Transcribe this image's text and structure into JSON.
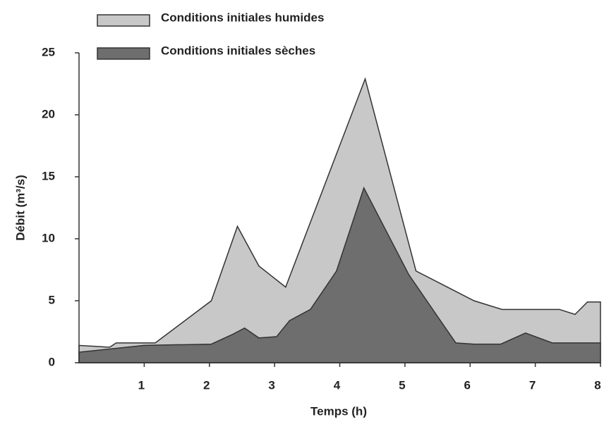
{
  "chart_data": {
    "type": "area",
    "xlabel": "Temps (h)",
    "ylabel": "Débit (m³/s)",
    "xlim": [
      0,
      8
    ],
    "xticks": [
      1,
      2,
      3,
      4,
      5,
      6,
      7,
      8
    ],
    "ylim": [
      0,
      25
    ],
    "yticks": [
      0,
      5,
      10,
      15,
      20,
      25
    ],
    "series": [
      {
        "name": "Conditions initiales humides",
        "color": "#c8c8c8",
        "x": [
          0,
          0.47,
          0.57,
          1.17,
          2.03,
          2.43,
          2.76,
          3.17,
          4.39,
          5.17,
          6.06,
          6.49,
          7.37,
          7.61,
          7.8,
          8
        ],
        "values": [
          1.4,
          1.25,
          1.6,
          1.6,
          5,
          11,
          7.8,
          6.1,
          22.9,
          7.4,
          5,
          4.3,
          4.3,
          3.9,
          4.9,
          4.9
        ]
      },
      {
        "name": "Conditions initiales sèches",
        "color": "#6e6e6e",
        "x": [
          0,
          1,
          2.03,
          2.36,
          2.54,
          2.76,
          3.03,
          3.23,
          3.55,
          3.95,
          4.37,
          5.06,
          5.78,
          6.06,
          6.47,
          6.85,
          7.26,
          8
        ],
        "values": [
          0.85,
          1.4,
          1.5,
          2.3,
          2.8,
          2,
          2.1,
          3.4,
          4.3,
          7.4,
          14.1,
          7.1,
          1.6,
          1.5,
          1.5,
          2.4,
          1.6,
          1.6
        ]
      }
    ]
  }
}
